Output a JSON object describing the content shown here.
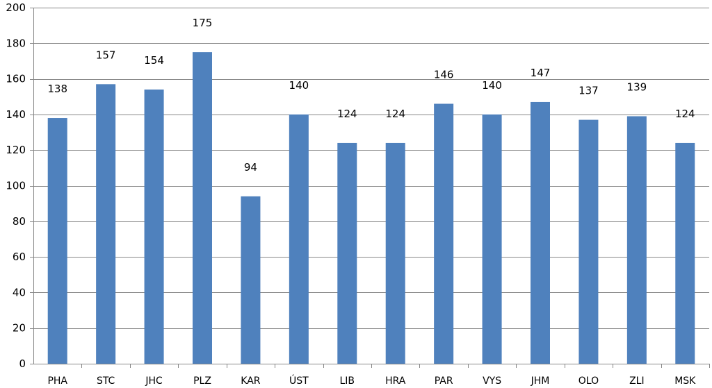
{
  "chart_data": {
    "type": "bar",
    "categories": [
      "PHA",
      "STC",
      "JHC",
      "PLZ",
      "KAR",
      "ÚST",
      "LIB",
      "HRA",
      "PAR",
      "VYS",
      "JHM",
      "OLO",
      "ZLI",
      "MSK"
    ],
    "values": [
      138,
      157,
      154,
      175,
      94,
      140,
      124,
      124,
      146,
      140,
      147,
      137,
      139,
      124
    ],
    "data_labels": [
      "138",
      "157",
      "154",
      "175",
      "94",
      "140",
      "124",
      "124",
      "146",
      "140",
      "147",
      "137",
      "139",
      "124"
    ],
    "yticks": [
      "0",
      "20",
      "40",
      "60",
      "80",
      "100",
      "120",
      "140",
      "160",
      "180",
      "200"
    ],
    "ylim": [
      0,
      200
    ],
    "grid": true,
    "legend": "none",
    "title": "",
    "xlabel": "",
    "ylabel": "",
    "colors": {
      "bar": "#4f81bd",
      "grid": "#868686"
    }
  }
}
